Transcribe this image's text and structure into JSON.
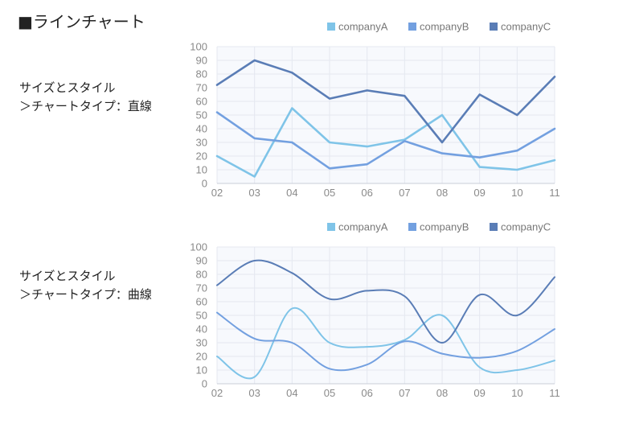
{
  "page": {
    "title": "■ラインチャート"
  },
  "sections": [
    {
      "label_line1": "サイズとスタイル",
      "label_line2": "＞チャートタイプ：直線"
    },
    {
      "label_line1": "サイズとスタイル",
      "label_line2": "＞チャートタイプ：曲線"
    }
  ],
  "chart_data": [
    {
      "type": "line",
      "curve": "straight",
      "categories": [
        "02",
        "03",
        "04",
        "05",
        "06",
        "07",
        "08",
        "09",
        "10",
        "11"
      ],
      "series": [
        {
          "name": "companyA",
          "color": "#7fc4e8",
          "values": [
            20,
            5,
            55,
            30,
            27,
            32,
            50,
            12,
            10,
            17
          ]
        },
        {
          "name": "companyB",
          "color": "#73a0e0",
          "values": [
            52,
            33,
            30,
            11,
            14,
            31,
            22,
            19,
            24,
            40
          ]
        },
        {
          "name": "companyC",
          "color": "#5a7db6",
          "values": [
            72,
            90,
            81,
            62,
            68,
            64,
            30,
            65,
            50,
            78
          ]
        }
      ],
      "ylim": [
        0,
        100
      ],
      "yticks": [
        0,
        10,
        20,
        30,
        40,
        50,
        60,
        70,
        80,
        90,
        100
      ],
      "grid": true,
      "legend": "top-right"
    },
    {
      "type": "line",
      "curve": "smooth",
      "categories": [
        "02",
        "03",
        "04",
        "05",
        "06",
        "07",
        "08",
        "09",
        "10",
        "11"
      ],
      "series": [
        {
          "name": "companyA",
          "color": "#7fc4e8",
          "values": [
            20,
            5,
            55,
            30,
            27,
            32,
            50,
            12,
            10,
            17
          ]
        },
        {
          "name": "companyB",
          "color": "#73a0e0",
          "values": [
            52,
            33,
            30,
            11,
            14,
            31,
            22,
            19,
            24,
            40
          ]
        },
        {
          "name": "companyC",
          "color": "#5a7db6",
          "values": [
            72,
            90,
            81,
            62,
            68,
            64,
            30,
            65,
            50,
            78
          ]
        }
      ],
      "ylim": [
        0,
        100
      ],
      "yticks": [
        0,
        10,
        20,
        30,
        40,
        50,
        60,
        70,
        80,
        90,
        100
      ],
      "grid": true,
      "legend": "top-right"
    }
  ]
}
